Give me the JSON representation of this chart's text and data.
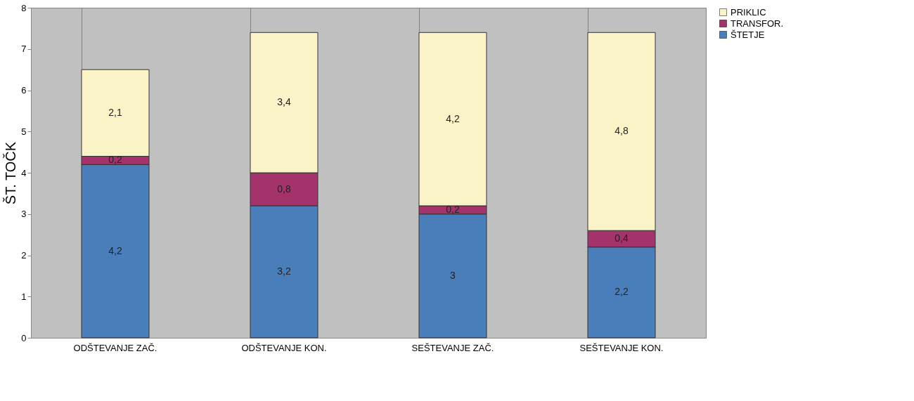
{
  "chart_data": {
    "type": "bar",
    "stacked": true,
    "ylabel": "ŠT. TOČK",
    "categories": [
      "ODŠTEVANJE ZAČ.",
      "ODŠTEVANJE KON.",
      "SEŠTEVANJE ZAČ.",
      "SEŠTEVANJE KON."
    ],
    "series": [
      {
        "name": "ŠTETJE",
        "color": "#4a7ebb",
        "values": [
          4.2,
          3.2,
          3,
          2.2
        ],
        "value_labels": [
          "4,2",
          "3,2",
          "3",
          "2,2"
        ]
      },
      {
        "name": "TRANSFOR.",
        "color": "#a3336a",
        "values": [
          0.2,
          0.8,
          0.2,
          0.4
        ],
        "value_labels": [
          "0,2",
          "0,8",
          "0,2",
          "0,4"
        ]
      },
      {
        "name": "PRIKLIC",
        "color": "#fbf3c8",
        "values": [
          2.1,
          3.4,
          4.2,
          4.8
        ],
        "value_labels": [
          "2,1",
          "3,4",
          "4,2",
          "4,8"
        ]
      }
    ],
    "ylim": [
      0,
      8
    ],
    "yticks": [
      0,
      1,
      2,
      3,
      4,
      5,
      6,
      7,
      8
    ],
    "grid": "x",
    "legend": "right"
  }
}
